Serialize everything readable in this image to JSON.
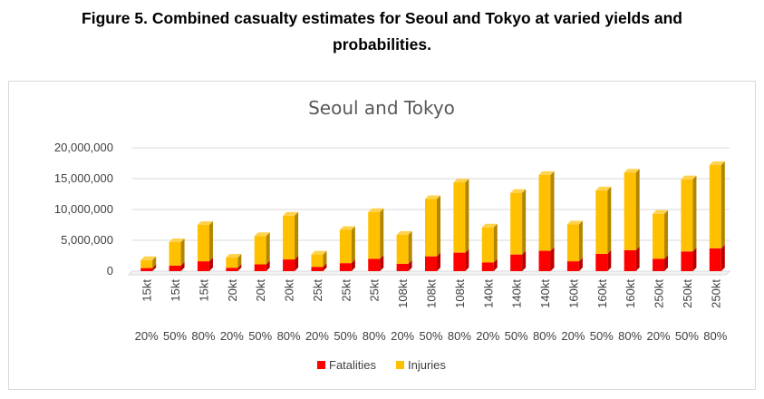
{
  "caption": {
    "line1": "Figure 5. Combined casualty estimates for Seoul and Tokyo at varied yields and",
    "line2": "probabilities."
  },
  "colors": {
    "fatalities": "#ff0000",
    "fatalities_side": "#b80000",
    "injuries": "#ffc000",
    "injuries_side": "#b38600",
    "gridline": "#d9d9d9"
  },
  "chart_data": {
    "type": "bar",
    "stacked": true,
    "style": "3d-column",
    "title": "Seoul and Tokyo",
    "xlabel": "",
    "ylabel": "",
    "ylim": [
      0,
      20000000
    ],
    "yticks": [
      "0",
      "5,000,000",
      "10,000,000",
      "15,000,000",
      "20,000,000"
    ],
    "ytick_values": [
      0,
      5000000,
      10000000,
      15000000,
      20000000
    ],
    "grid": true,
    "legend_position": "bottom",
    "categories_yield": [
      "15kt",
      "15kt",
      "15kt",
      "20kt",
      "20kt",
      "20kt",
      "25kt",
      "25kt",
      "25kt",
      "108kt",
      "108kt",
      "108kt",
      "140kt",
      "140kt",
      "140kt",
      "160kt",
      "160kt",
      "160kt",
      "250kt",
      "250kt",
      "250kt"
    ],
    "categories_probability": [
      "20%",
      "50%",
      "80%",
      "20%",
      "50%",
      "80%",
      "20%",
      "50%",
      "80%",
      "20%",
      "50%",
      "80%",
      "20%",
      "50%",
      "80%",
      "20%",
      "50%",
      "80%",
      "20%",
      "50%",
      "80%"
    ],
    "series": [
      {
        "name": "Fatalities",
        "values": [
          500000,
          900000,
          1600000,
          550000,
          1100000,
          1900000,
          700000,
          1300000,
          2000000,
          1200000,
          2400000,
          3000000,
          1400000,
          2700000,
          3300000,
          1600000,
          2800000,
          3400000,
          2000000,
          3200000,
          3700000
        ]
      },
      {
        "name": "Injuries",
        "values": [
          1300000,
          3800000,
          5900000,
          1650000,
          4600000,
          7100000,
          2000000,
          5400000,
          7600000,
          4700000,
          9300000,
          11400000,
          5700000,
          10000000,
          12300000,
          6000000,
          10300000,
          12600000,
          7300000,
          11700000,
          13500000
        ]
      }
    ]
  }
}
